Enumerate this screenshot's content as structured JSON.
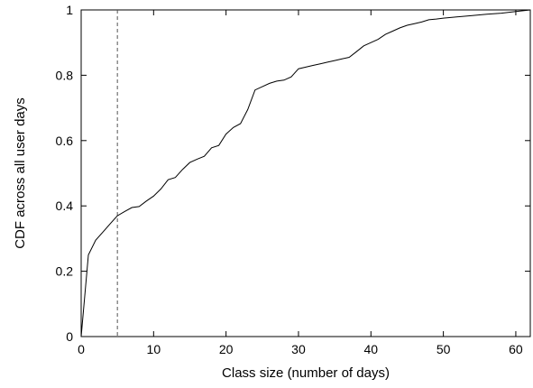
{
  "chart_data": {
    "type": "line",
    "title": "",
    "xlabel": "Class size (number of days)",
    "ylabel": "CDF across all user days",
    "xlim": [
      0,
      62
    ],
    "ylim": [
      0,
      1
    ],
    "xticks": [
      0,
      10,
      20,
      30,
      40,
      50,
      60
    ],
    "yticks": [
      0,
      0.2,
      0.4,
      0.6,
      0.8,
      1
    ],
    "xtick_labels": [
      "0",
      "10",
      "20",
      "30",
      "40",
      "50",
      "60"
    ],
    "ytick_labels": [
      "0",
      "0.2",
      "0.4",
      "0.6",
      "0.8",
      "1"
    ],
    "grid": false,
    "line_color": "#000000",
    "series": [
      {
        "x": [
          0,
          1,
          2,
          3,
          4,
          5,
          6,
          7,
          8,
          9,
          10,
          11,
          12,
          13,
          14,
          15,
          16,
          17,
          18,
          19,
          20,
          21,
          22,
          23,
          24,
          25,
          26,
          27,
          28,
          29,
          30,
          31,
          32,
          33,
          34,
          35,
          36,
          37,
          38,
          39,
          40,
          41,
          42,
          43,
          44,
          45,
          46,
          47,
          48,
          49,
          50,
          52,
          54,
          56,
          58,
          60,
          62
        ],
        "y": [
          0,
          0.25,
          0.295,
          0.32,
          0.345,
          0.37,
          0.383,
          0.395,
          0.398,
          0.415,
          0.43,
          0.452,
          0.48,
          0.487,
          0.512,
          0.533,
          0.543,
          0.552,
          0.578,
          0.585,
          0.62,
          0.64,
          0.652,
          0.695,
          0.755,
          0.765,
          0.775,
          0.782,
          0.785,
          0.795,
          0.82,
          0.825,
          0.83,
          0.835,
          0.84,
          0.845,
          0.85,
          0.855,
          0.872,
          0.89,
          0.9,
          0.91,
          0.925,
          0.935,
          0.945,
          0.953,
          0.958,
          0.963,
          0.97,
          0.972,
          0.975,
          0.979,
          0.983,
          0.987,
          0.99,
          0.995,
          1
        ]
      }
    ],
    "reference_line": {
      "x": 5,
      "style": "dashed",
      "color": "#555555"
    }
  }
}
